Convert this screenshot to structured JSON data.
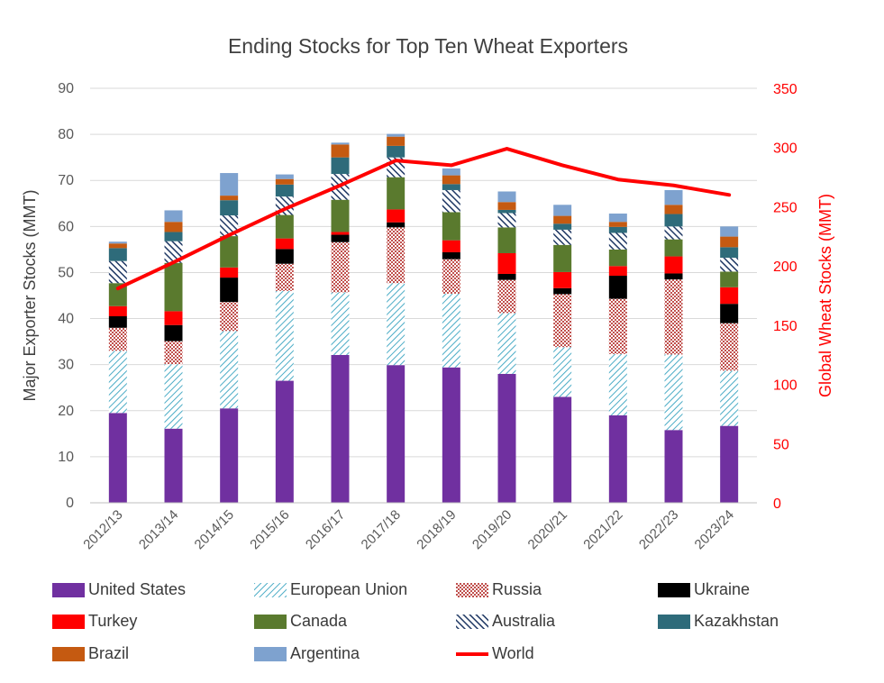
{
  "chart_data": {
    "type": "bar",
    "stacked": true,
    "title": "Ending Stocks for Top Ten Wheat Exporters",
    "ylabel": "Major Exporter Stocks (MMT)",
    "y2label": "Global Wheat Stocks (MMT)",
    "ylim": [
      0,
      90
    ],
    "y2lim": [
      0,
      350
    ],
    "yticks": [
      0,
      10,
      20,
      30,
      40,
      50,
      60,
      70,
      80,
      90
    ],
    "y2ticks": [
      0,
      50,
      100,
      150,
      200,
      250,
      300,
      350
    ],
    "grid": true,
    "legend_position": "bottom",
    "categories": [
      "2012/13",
      "2013/14",
      "2014/15",
      "2015/16",
      "2016/17",
      "2017/18",
      "2018/19",
      "2019/20",
      "2020/21",
      "2021/22",
      "2022/23",
      "2023/24"
    ],
    "series": [
      {
        "name": "United States",
        "color": "#7030a0",
        "pattern": "solid",
        "values": [
          19.5,
          16.1,
          20.5,
          26.5,
          32.1,
          29.9,
          29.4,
          28.0,
          23.0,
          19.0,
          15.8,
          16.7
        ]
      },
      {
        "name": "European Union",
        "color": "#4bacc6",
        "pattern": "diag-light",
        "values": [
          13.5,
          14.0,
          16.8,
          19.5,
          13.6,
          17.8,
          16.0,
          13.2,
          10.8,
          13.3,
          16.4,
          12.0
        ]
      },
      {
        "name": "Russia",
        "color": "#c0504d",
        "pattern": "checker",
        "values": [
          5.0,
          5.0,
          6.3,
          5.9,
          10.9,
          12.1,
          7.5,
          7.2,
          11.5,
          12.0,
          16.3,
          10.3
        ]
      },
      {
        "name": "Ukraine",
        "color": "#000000",
        "pattern": "solid",
        "values": [
          2.5,
          3.5,
          5.3,
          3.2,
          1.6,
          1.1,
          1.5,
          1.3,
          1.3,
          5.0,
          1.3,
          4.2
        ]
      },
      {
        "name": "Turkey",
        "color": "#ff0000",
        "pattern": "solid",
        "values": [
          2.2,
          3.0,
          2.2,
          2.3,
          0.6,
          2.8,
          2.6,
          4.5,
          3.5,
          2.1,
          3.7,
          3.6
        ]
      },
      {
        "name": "Canada",
        "color": "#5a7a2e",
        "pattern": "solid",
        "values": [
          5.0,
          10.5,
          6.8,
          5.1,
          7.0,
          7.0,
          6.1,
          5.6,
          5.9,
          3.6,
          3.7,
          3.4
        ]
      },
      {
        "name": "Australia",
        "color": "#1f3864",
        "pattern": "diag-dark",
        "values": [
          4.8,
          4.7,
          4.5,
          4.0,
          5.6,
          4.3,
          4.8,
          3.1,
          3.3,
          3.6,
          2.8,
          3.0
        ]
      },
      {
        "name": "Kazakhstan",
        "color": "#2e6b7a",
        "pattern": "solid",
        "values": [
          2.8,
          2.0,
          3.3,
          2.6,
          3.6,
          2.5,
          1.3,
          0.7,
          1.3,
          1.3,
          2.7,
          2.3
        ]
      },
      {
        "name": "Brazil",
        "color": "#c55a11",
        "pattern": "solid",
        "values": [
          1.0,
          2.2,
          1.0,
          1.2,
          2.8,
          2.0,
          1.9,
          1.7,
          1.7,
          1.1,
          2.0,
          2.3
        ]
      },
      {
        "name": "Argentina",
        "color": "#7ea2cf",
        "pattern": "solid",
        "values": [
          0.4,
          2.5,
          4.9,
          1.0,
          0.4,
          0.6,
          1.5,
          2.3,
          2.4,
          1.8,
          3.2,
          2.2
        ]
      }
    ],
    "line_series": [
      {
        "name": "World",
        "color": "#ff0000",
        "axis": "right",
        "values": [
          181,
          203,
          226,
          248,
          268,
          289,
          285,
          299,
          285,
          273,
          268,
          260
        ]
      }
    ]
  }
}
